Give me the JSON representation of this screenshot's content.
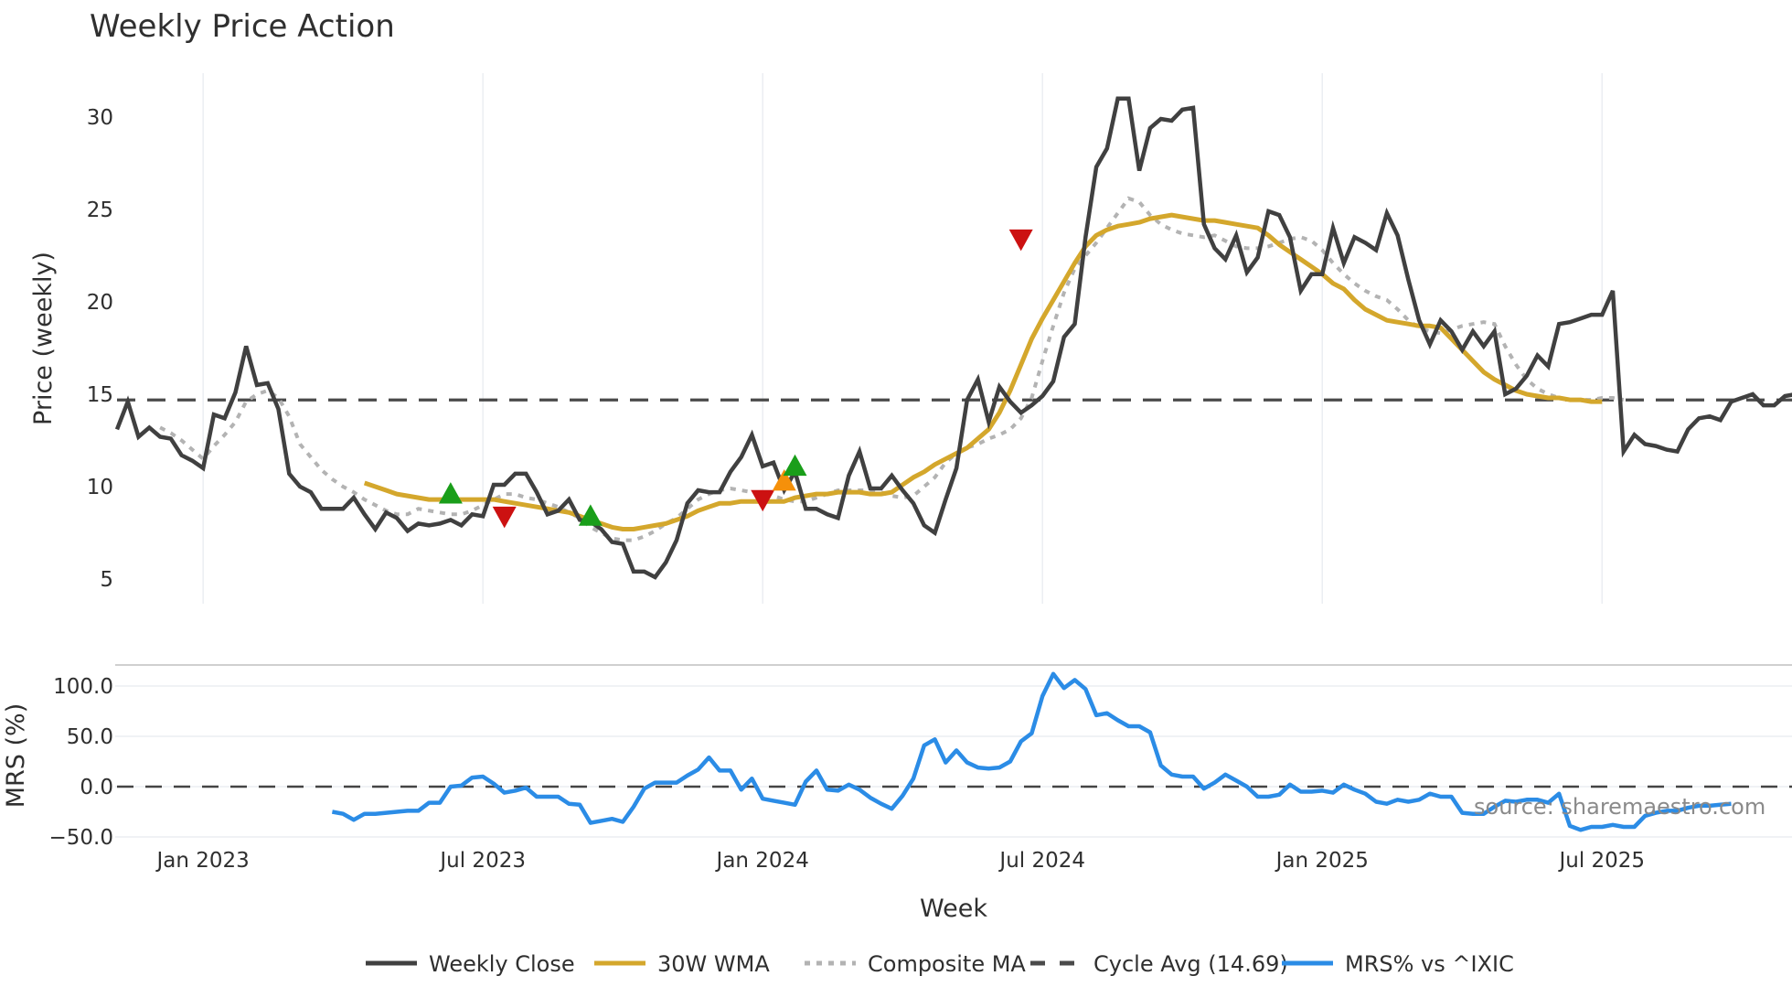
{
  "chart_data": [
    {
      "type": "line",
      "panel": "price",
      "title": "Weekly Price Action",
      "xlabel": "Week",
      "ylabel": "Price (weekly)",
      "ylim": [
        3.5,
        32.5
      ],
      "yticks": [
        5,
        10,
        15,
        20,
        25,
        30
      ],
      "x_tick_labels": [
        "Jan 2023",
        "Jul 2023",
        "Jan 2024",
        "Jul 2024",
        "Jan 2025",
        "Jul 2025"
      ],
      "x_tick_weeks": [
        8,
        34,
        60,
        86,
        112,
        138
      ],
      "grid": "vertical",
      "series": [
        {
          "name": "Weekly Close",
          "color": "#404040",
          "style": "solid",
          "start_week": 0,
          "values": [
            13.1,
            14.6,
            12.7,
            13.2,
            12.7,
            12.6,
            11.7,
            11.4,
            11.0,
            13.9,
            13.7,
            15.1,
            17.6,
            15.5,
            15.6,
            14.2,
            10.7,
            10.0,
            9.7,
            8.8,
            8.8,
            8.8,
            9.4,
            8.5,
            7.7,
            8.6,
            8.3,
            7.6,
            8.0,
            7.9,
            8.0,
            8.2,
            7.9,
            8.5,
            8.4,
            10.1,
            10.1,
            10.7,
            10.7,
            9.7,
            8.5,
            8.7,
            9.3,
            8.2,
            8.1,
            7.7,
            7.0,
            6.9,
            5.4,
            5.4,
            5.1,
            5.9,
            7.1,
            9.1,
            9.8,
            9.7,
            9.7,
            10.8,
            11.6,
            12.8,
            11.1,
            11.3,
            9.8,
            10.8,
            8.8,
            8.8,
            8.5,
            8.3,
            10.6,
            11.9,
            9.9,
            9.9,
            10.6,
            9.8,
            9.1,
            7.9,
            7.5,
            9.3,
            11.0,
            14.7,
            15.8,
            13.5,
            15.4,
            14.6,
            14.0,
            14.4,
            14.9,
            15.7,
            18.1,
            18.8,
            23.5,
            27.3,
            28.3,
            31.0,
            31.0,
            27.1,
            29.4,
            29.9,
            29.8,
            30.4,
            30.5,
            24.2,
            22.9,
            22.3,
            23.6,
            21.6,
            22.4,
            24.9,
            24.7,
            23.5,
            20.6,
            21.5,
            21.5,
            24.0,
            22.1,
            23.5,
            23.2,
            22.8,
            24.8,
            23.6,
            21.2,
            19.0,
            17.7,
            19.0,
            18.4,
            17.4,
            18.4,
            17.6,
            18.4,
            15.0,
            15.3,
            16.0,
            17.1,
            16.5,
            18.8,
            18.9,
            19.1,
            19.3,
            19.3,
            20.6,
            11.9,
            12.8,
            12.3,
            12.2,
            12.0,
            11.9,
            13.1,
            13.7,
            13.8,
            13.6,
            14.6,
            14.8,
            15.0,
            14.4,
            14.4,
            14.9,
            15.0
          ]
        },
        {
          "name": "30W WMA",
          "color": "#d4a72c",
          "style": "solid",
          "start_week": 23,
          "values": [
            10.2,
            10.0,
            9.8,
            9.6,
            9.5,
            9.4,
            9.3,
            9.3,
            9.3,
            9.3,
            9.3,
            9.3,
            9.3,
            9.2,
            9.1,
            9.0,
            8.9,
            8.8,
            8.7,
            8.6,
            8.4,
            8.2,
            8.0,
            7.8,
            7.7,
            7.7,
            7.8,
            7.9,
            8.0,
            8.2,
            8.4,
            8.7,
            8.9,
            9.1,
            9.1,
            9.2,
            9.2,
            9.2,
            9.2,
            9.2,
            9.4,
            9.5,
            9.6,
            9.6,
            9.7,
            9.7,
            9.7,
            9.6,
            9.6,
            9.7,
            10.1,
            10.5,
            10.8,
            11.2,
            11.5,
            11.8,
            12.1,
            12.6,
            13.1,
            14.0,
            15.2,
            16.6,
            18.0,
            19.1,
            20.1,
            21.1,
            22.1,
            23.0,
            23.6,
            23.9,
            24.1,
            24.2,
            24.3,
            24.5,
            24.6,
            24.7,
            24.6,
            24.5,
            24.4,
            24.4,
            24.3,
            24.2,
            24.1,
            24.0,
            23.6,
            23.1,
            22.7,
            22.3,
            21.9,
            21.5,
            21.0,
            20.7,
            20.1,
            19.6,
            19.3,
            19.0,
            18.9,
            18.8,
            18.7,
            18.7,
            18.6,
            18.0,
            17.4,
            16.8,
            16.2,
            15.8,
            15.5,
            15.2,
            15.0,
            14.9,
            14.8,
            14.8,
            14.7,
            14.7,
            14.6,
            14.6
          ]
        },
        {
          "name": "Composite MA",
          "color": "#b3b3b3",
          "style": "dotted",
          "start_week": 4,
          "values": [
            13.2,
            12.9,
            12.5,
            12.0,
            11.5,
            12.2,
            12.8,
            13.5,
            14.6,
            15.0,
            15.2,
            14.8,
            13.8,
            12.3,
            11.6,
            10.9,
            10.4,
            10.0,
            9.7,
            9.3,
            9.0,
            8.7,
            8.5,
            8.5,
            8.8,
            8.7,
            8.6,
            8.5,
            8.5,
            8.7,
            9.0,
            9.3,
            9.6,
            9.6,
            9.4,
            9.3,
            9.1,
            8.9,
            8.6,
            8.3,
            7.8,
            7.5,
            7.2,
            7.1,
            7.1,
            7.3,
            7.6,
            8.0,
            8.3,
            8.8,
            9.3,
            9.6,
            9.8,
            9.9,
            9.8,
            9.7,
            9.6,
            9.5,
            9.3,
            9.2,
            9.2,
            9.4,
            9.6,
            9.8,
            9.8,
            9.8,
            9.8,
            9.7,
            9.5,
            9.4,
            9.5,
            10.0,
            10.5,
            11.3,
            11.8,
            12.1,
            12.3,
            12.6,
            12.8,
            13.1,
            13.7,
            14.8,
            16.8,
            18.7,
            20.5,
            21.8,
            22.5,
            23.2,
            24.0,
            24.8,
            25.6,
            25.4,
            24.7,
            24.2,
            23.9,
            23.7,
            23.6,
            23.5,
            23.6,
            23.3,
            23.0,
            22.9,
            22.9,
            23.0,
            23.2,
            23.4,
            23.5,
            23.3,
            22.8,
            22.1,
            21.5,
            21.0,
            20.6,
            20.3,
            20.1,
            19.6,
            19.0,
            18.6,
            18.4,
            18.3,
            18.5,
            18.7,
            18.8,
            18.9,
            18.8,
            17.6,
            16.6,
            15.8,
            15.3,
            15.0,
            14.8,
            14.7,
            14.7,
            14.7,
            14.8,
            14.8,
            14.7
          ]
        },
        {
          "name": "Cycle Avg (14.69)",
          "color": "#4a4a4a",
          "style": "dashed",
          "value": 14.69
        }
      ],
      "markers": [
        {
          "type": "buy",
          "shape": "triangle-up",
          "color": "#1a9e1a",
          "week": 31,
          "value": 9.6
        },
        {
          "type": "sell",
          "shape": "triangle-down",
          "color": "#cc1111",
          "week": 36,
          "value": 8.4
        },
        {
          "type": "buy",
          "shape": "triangle-up",
          "color": "#1a9e1a",
          "week": 44,
          "value": 8.4
        },
        {
          "type": "sell",
          "shape": "triangle-down",
          "color": "#cc1111",
          "week": 60,
          "value": 9.3
        },
        {
          "type": "caution",
          "shape": "triangle-up",
          "color": "#f5900a",
          "week": 62,
          "value": 10.3
        },
        {
          "type": "buy",
          "shape": "triangle-up",
          "color": "#1a9e1a",
          "week": 63,
          "value": 11.1
        },
        {
          "type": "sell",
          "shape": "triangle-down",
          "color": "#cc1111",
          "week": 84,
          "value": 23.4
        }
      ]
    },
    {
      "type": "line",
      "panel": "mrs",
      "ylabel": "MRS (%)",
      "ylim": [
        -55,
        120
      ],
      "yticks": [
        -50.0,
        0.0,
        50.0,
        100.0
      ],
      "ytick_labels": [
        "−50.0",
        "0.0",
        "50.0",
        "100.0"
      ],
      "zero_line": 0.0,
      "series": [
        {
          "name": "MRS% vs ^IXIC",
          "color": "#2b8ce6",
          "style": "solid",
          "start_week": 20,
          "values": [
            -25,
            -27,
            -33,
            -27,
            -27,
            -26,
            -25,
            -24,
            -24,
            -16,
            -16,
            0,
            1,
            9,
            10,
            3,
            -6,
            -4,
            -1,
            -10,
            -10,
            -10,
            -17,
            -18,
            -36,
            -34,
            -32,
            -35,
            -20,
            -2,
            4,
            4,
            4,
            11,
            17,
            29,
            16,
            16,
            -3,
            8,
            -12,
            -14,
            -16,
            -18,
            5,
            16,
            -3,
            -4,
            2,
            -3,
            -11,
            -17,
            -22,
            -9,
            8,
            41,
            47,
            24,
            36,
            24,
            19,
            18,
            19,
            25,
            45,
            53,
            90,
            112,
            98,
            106,
            97,
            71,
            73,
            66,
            60,
            60,
            54,
            21,
            12,
            10,
            10,
            -2,
            4,
            12,
            6,
            0,
            -10,
            -10,
            -8,
            2,
            -5,
            -5,
            -4,
            -6,
            2,
            -3,
            -7,
            -15,
            -17,
            -13,
            -15,
            -13,
            -7,
            -10,
            -10,
            -26,
            -27,
            -27,
            -20,
            -14,
            -15,
            -13,
            -13,
            -16,
            -7,
            -39,
            -43,
            -40,
            -40,
            -38,
            -40,
            -40,
            -29,
            -26,
            -24,
            -24,
            -21,
            -19,
            -19,
            -18,
            -17
          ]
        }
      ]
    }
  ],
  "title": "Weekly Price Action",
  "axes": {
    "price_ylabel": "Price (weekly)",
    "mrs_ylabel": "MRS (%)",
    "xlabel": "Week",
    "price_ticks": [
      "5",
      "10",
      "15",
      "20",
      "25",
      "30"
    ],
    "mrs_ticks": [
      "100.0",
      "50.0",
      "0.0",
      "−50.0"
    ],
    "x_ticks": [
      "Jan 2023",
      "Jul 2023",
      "Jan 2024",
      "Jul 2024",
      "Jan 2025",
      "Jul 2025"
    ]
  },
  "legend": {
    "items": [
      {
        "label": "Weekly Close",
        "color": "#404040",
        "style": "solid"
      },
      {
        "label": "30W WMA",
        "color": "#d4a72c",
        "style": "solid"
      },
      {
        "label": "Composite MA",
        "color": "#b3b3b3",
        "style": "dotted"
      },
      {
        "label": "Cycle Avg (14.69)",
        "color": "#4a4a4a",
        "style": "dashed"
      },
      {
        "label": "MRS% vs ^IXIC",
        "color": "#2b8ce6",
        "style": "solid"
      }
    ]
  },
  "source_note": "source: sharemaestro.com"
}
